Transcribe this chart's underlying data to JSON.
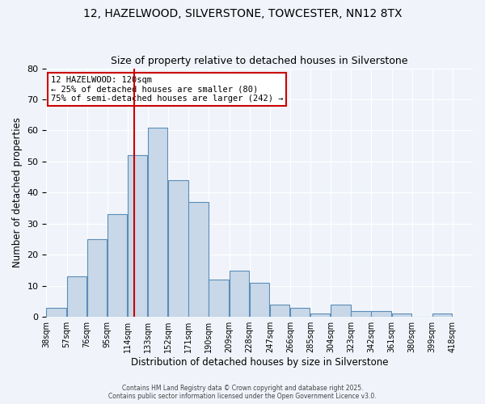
{
  "title1": "12, HAZELWOOD, SILVERSTONE, TOWCESTER, NN12 8TX",
  "title2": "Size of property relative to detached houses in Silverstone",
  "xlabel": "Distribution of detached houses by size in Silverstone",
  "ylabel": "Number of detached properties",
  "bin_labels": [
    "38sqm",
    "57sqm",
    "76sqm",
    "95sqm",
    "114sqm",
    "133sqm",
    "152sqm",
    "171sqm",
    "190sqm",
    "209sqm",
    "228sqm",
    "247sqm",
    "266sqm",
    "285sqm",
    "304sqm",
    "323sqm",
    "342sqm",
    "361sqm",
    "380sqm",
    "399sqm",
    "418sqm"
  ],
  "bin_edges": [
    38,
    57,
    76,
    95,
    114,
    133,
    152,
    171,
    190,
    209,
    228,
    247,
    266,
    285,
    304,
    323,
    342,
    361,
    380,
    399,
    418
  ],
  "bar_heights": [
    3,
    13,
    25,
    33,
    52,
    61,
    44,
    37,
    12,
    15,
    11,
    4,
    3,
    1,
    4,
    2,
    2,
    1,
    0,
    1
  ],
  "bar_color": "#c8d8e8",
  "bar_edge_color": "#5b8db8",
  "red_line_x": 120,
  "annotation_title": "12 HAZELWOOD: 120sqm",
  "annotation_line2": "← 25% of detached houses are smaller (80)",
  "annotation_line3": "75% of semi-detached houses are larger (242) →",
  "annotation_box_color": "#ffffff",
  "annotation_box_edge": "#cc0000",
  "footer1": "Contains HM Land Registry data © Crown copyright and database right 2025.",
  "footer2": "Contains public sector information licensed under the Open Government Licence v3.0.",
  "ylim": [
    0,
    80
  ],
  "yticks": [
    0,
    10,
    20,
    30,
    40,
    50,
    60,
    70,
    80
  ],
  "bg_color": "#f0f4fa",
  "grid_color": "#ffffff"
}
